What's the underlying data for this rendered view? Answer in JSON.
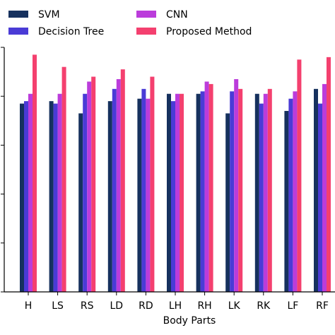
{
  "chart_data": {
    "type": "bar",
    "xlabel": "Body Parts",
    "ylabel": "",
    "title": "",
    "categories": [
      "H",
      "LS",
      "RS",
      "LD",
      "RD",
      "LH",
      "RH",
      "LK",
      "RK",
      "LF",
      "RF"
    ],
    "ylim": [
      0,
      1
    ],
    "grid": false,
    "legend_placement": "top",
    "series": [
      {
        "name": "SVM",
        "color": "#16315e",
        "values": [
          0.77,
          0.78,
          0.73,
          0.78,
          0.79,
          0.81,
          0.81,
          0.73,
          0.81,
          0.74,
          0.83
        ]
      },
      {
        "name": "Decision Tree",
        "color": "#4a3bd6",
        "values": [
          0.78,
          0.77,
          0.81,
          0.83,
          0.83,
          0.78,
          0.82,
          0.82,
          0.77,
          0.79,
          0.77
        ]
      },
      {
        "name": "CNN",
        "color": "#bb3cdb",
        "values": [
          0.81,
          0.81,
          0.86,
          0.87,
          0.79,
          0.81,
          0.86,
          0.87,
          0.81,
          0.82,
          0.85
        ]
      },
      {
        "name": "Proposed Method",
        "color": "#f4406f",
        "values": [
          0.97,
          0.92,
          0.88,
          0.91,
          0.88,
          0.81,
          0.85,
          0.83,
          0.83,
          0.95,
          0.96
        ]
      }
    ]
  }
}
